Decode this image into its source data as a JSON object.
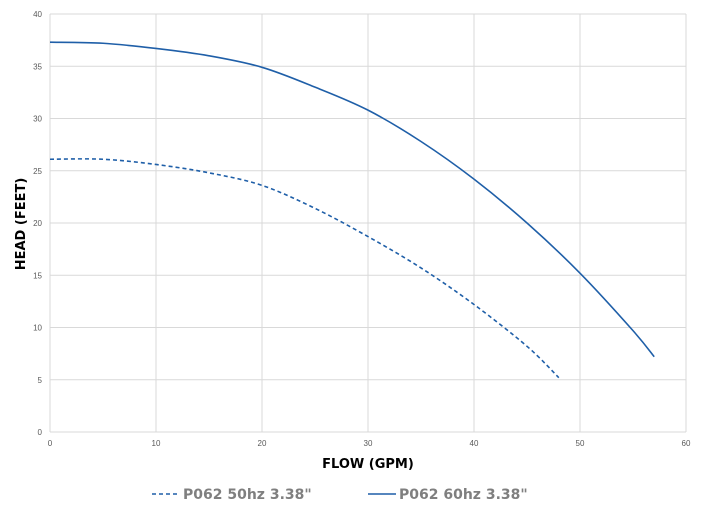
{
  "chart_data": {
    "type": "line",
    "title": "",
    "xlabel": "FLOW (GPM)",
    "ylabel": "HEAD (FEET)",
    "xlim": [
      0,
      60
    ],
    "ylim": [
      0,
      40
    ],
    "xticks": [
      "0",
      "10",
      "20",
      "30",
      "40",
      "50",
      "60"
    ],
    "yticks": [
      "0",
      "5",
      "10",
      "15",
      "20",
      "25",
      "30",
      "35",
      "40"
    ],
    "grid": true,
    "legend_position": "bottom",
    "series": [
      {
        "name": "P062 50hz 3.38\"",
        "style": "dashed",
        "color": "#1f5fa8",
        "points": [
          [
            0,
            26.1
          ],
          [
            5,
            26.1
          ],
          [
            10,
            25.6
          ],
          [
            15,
            24.8
          ],
          [
            20,
            23.6
          ],
          [
            25,
            21.4
          ],
          [
            30,
            18.7
          ],
          [
            35,
            15.7
          ],
          [
            40,
            12.2
          ],
          [
            45,
            8.2
          ],
          [
            48,
            5.2
          ]
        ]
      },
      {
        "name": "P062 60hz 3.38\"",
        "style": "solid",
        "color": "#1f5fa8",
        "points": [
          [
            0,
            37.3
          ],
          [
            5,
            37.2
          ],
          [
            10,
            36.7
          ],
          [
            15,
            36.0
          ],
          [
            20,
            34.9
          ],
          [
            25,
            33.0
          ],
          [
            30,
            30.8
          ],
          [
            35,
            27.8
          ],
          [
            40,
            24.2
          ],
          [
            45,
            20.0
          ],
          [
            50,
            15.2
          ],
          [
            55,
            9.7
          ],
          [
            57,
            7.2
          ]
        ]
      }
    ]
  }
}
